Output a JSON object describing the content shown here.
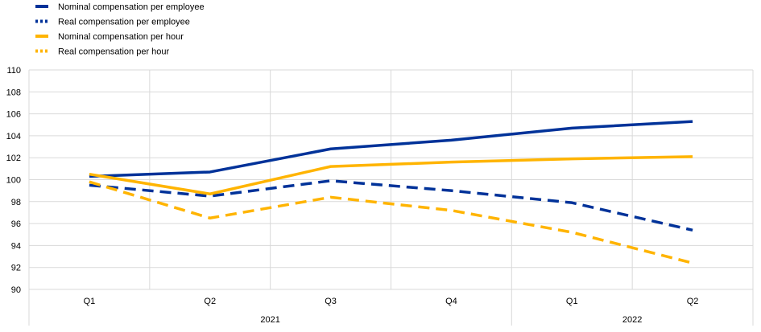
{
  "chart_data": {
    "type": "line",
    "title": "",
    "xlabel": "",
    "ylabel": "",
    "ylim": [
      90,
      110
    ],
    "yticks": [
      90,
      92,
      94,
      96,
      98,
      100,
      102,
      104,
      106,
      108,
      110
    ],
    "categories": [
      "Q1",
      "Q2",
      "Q3",
      "Q4",
      "Q1",
      "Q2"
    ],
    "years": [
      {
        "label": "2021",
        "span": [
          0,
          3
        ]
      },
      {
        "label": "2022",
        "span": [
          4,
          5
        ]
      }
    ],
    "grid": true,
    "legend_position": "top-left",
    "series": [
      {
        "name": "Nominal compensation per employee",
        "color": "#003299",
        "style": "solid",
        "values": [
          100.3,
          100.7,
          102.8,
          103.6,
          104.7,
          105.3
        ]
      },
      {
        "name": "Real compensation per employee",
        "color": "#003299",
        "style": "dashed",
        "values": [
          99.5,
          98.5,
          99.9,
          99.0,
          97.9,
          95.4
        ]
      },
      {
        "name": "Nominal compensation per hour",
        "color": "#FFB400",
        "style": "solid",
        "values": [
          100.5,
          98.7,
          101.2,
          101.6,
          101.9,
          102.1
        ]
      },
      {
        "name": "Real compensation per hour",
        "color": "#FFB400",
        "style": "dashed",
        "values": [
          99.8,
          96.5,
          98.4,
          97.2,
          95.2,
          92.4
        ]
      }
    ]
  }
}
